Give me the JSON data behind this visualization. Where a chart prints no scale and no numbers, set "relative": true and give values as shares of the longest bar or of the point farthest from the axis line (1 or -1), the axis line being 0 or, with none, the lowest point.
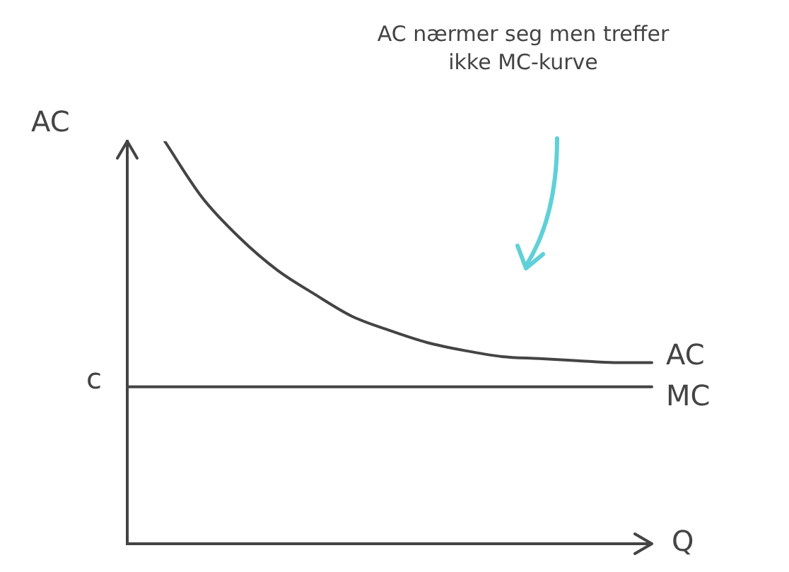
{
  "chart_data": {
    "type": "line",
    "xlabel": "Q",
    "ylabel": "AC",
    "relative": true,
    "grid": false,
    "legend": false,
    "marker": "none",
    "annotations": [
      "AC nærmer seg men treffer ikke MC-kurve",
      "c"
    ],
    "categories": [
      null,
      null,
      null,
      null,
      null,
      null,
      null,
      null,
      null,
      null,
      null,
      null,
      null,
      null,
      null
    ],
    "series": [
      {
        "name": "AC",
        "color": "#444444",
        "values": [
          null,
          1.0,
          0.86,
          0.76,
          0.68,
          0.62,
          0.565,
          0.53,
          0.5,
          0.48,
          0.465,
          0.46,
          0.455,
          0.45,
          0.45
        ]
      },
      {
        "name": "MC",
        "color": "#444444",
        "values": [
          0.39,
          0.39,
          0.39,
          0.39,
          0.39,
          0.39,
          0.39,
          0.39,
          0.39,
          0.39,
          0.39,
          0.39,
          0.39,
          0.39,
          0.39
        ]
      }
    ]
  }
}
